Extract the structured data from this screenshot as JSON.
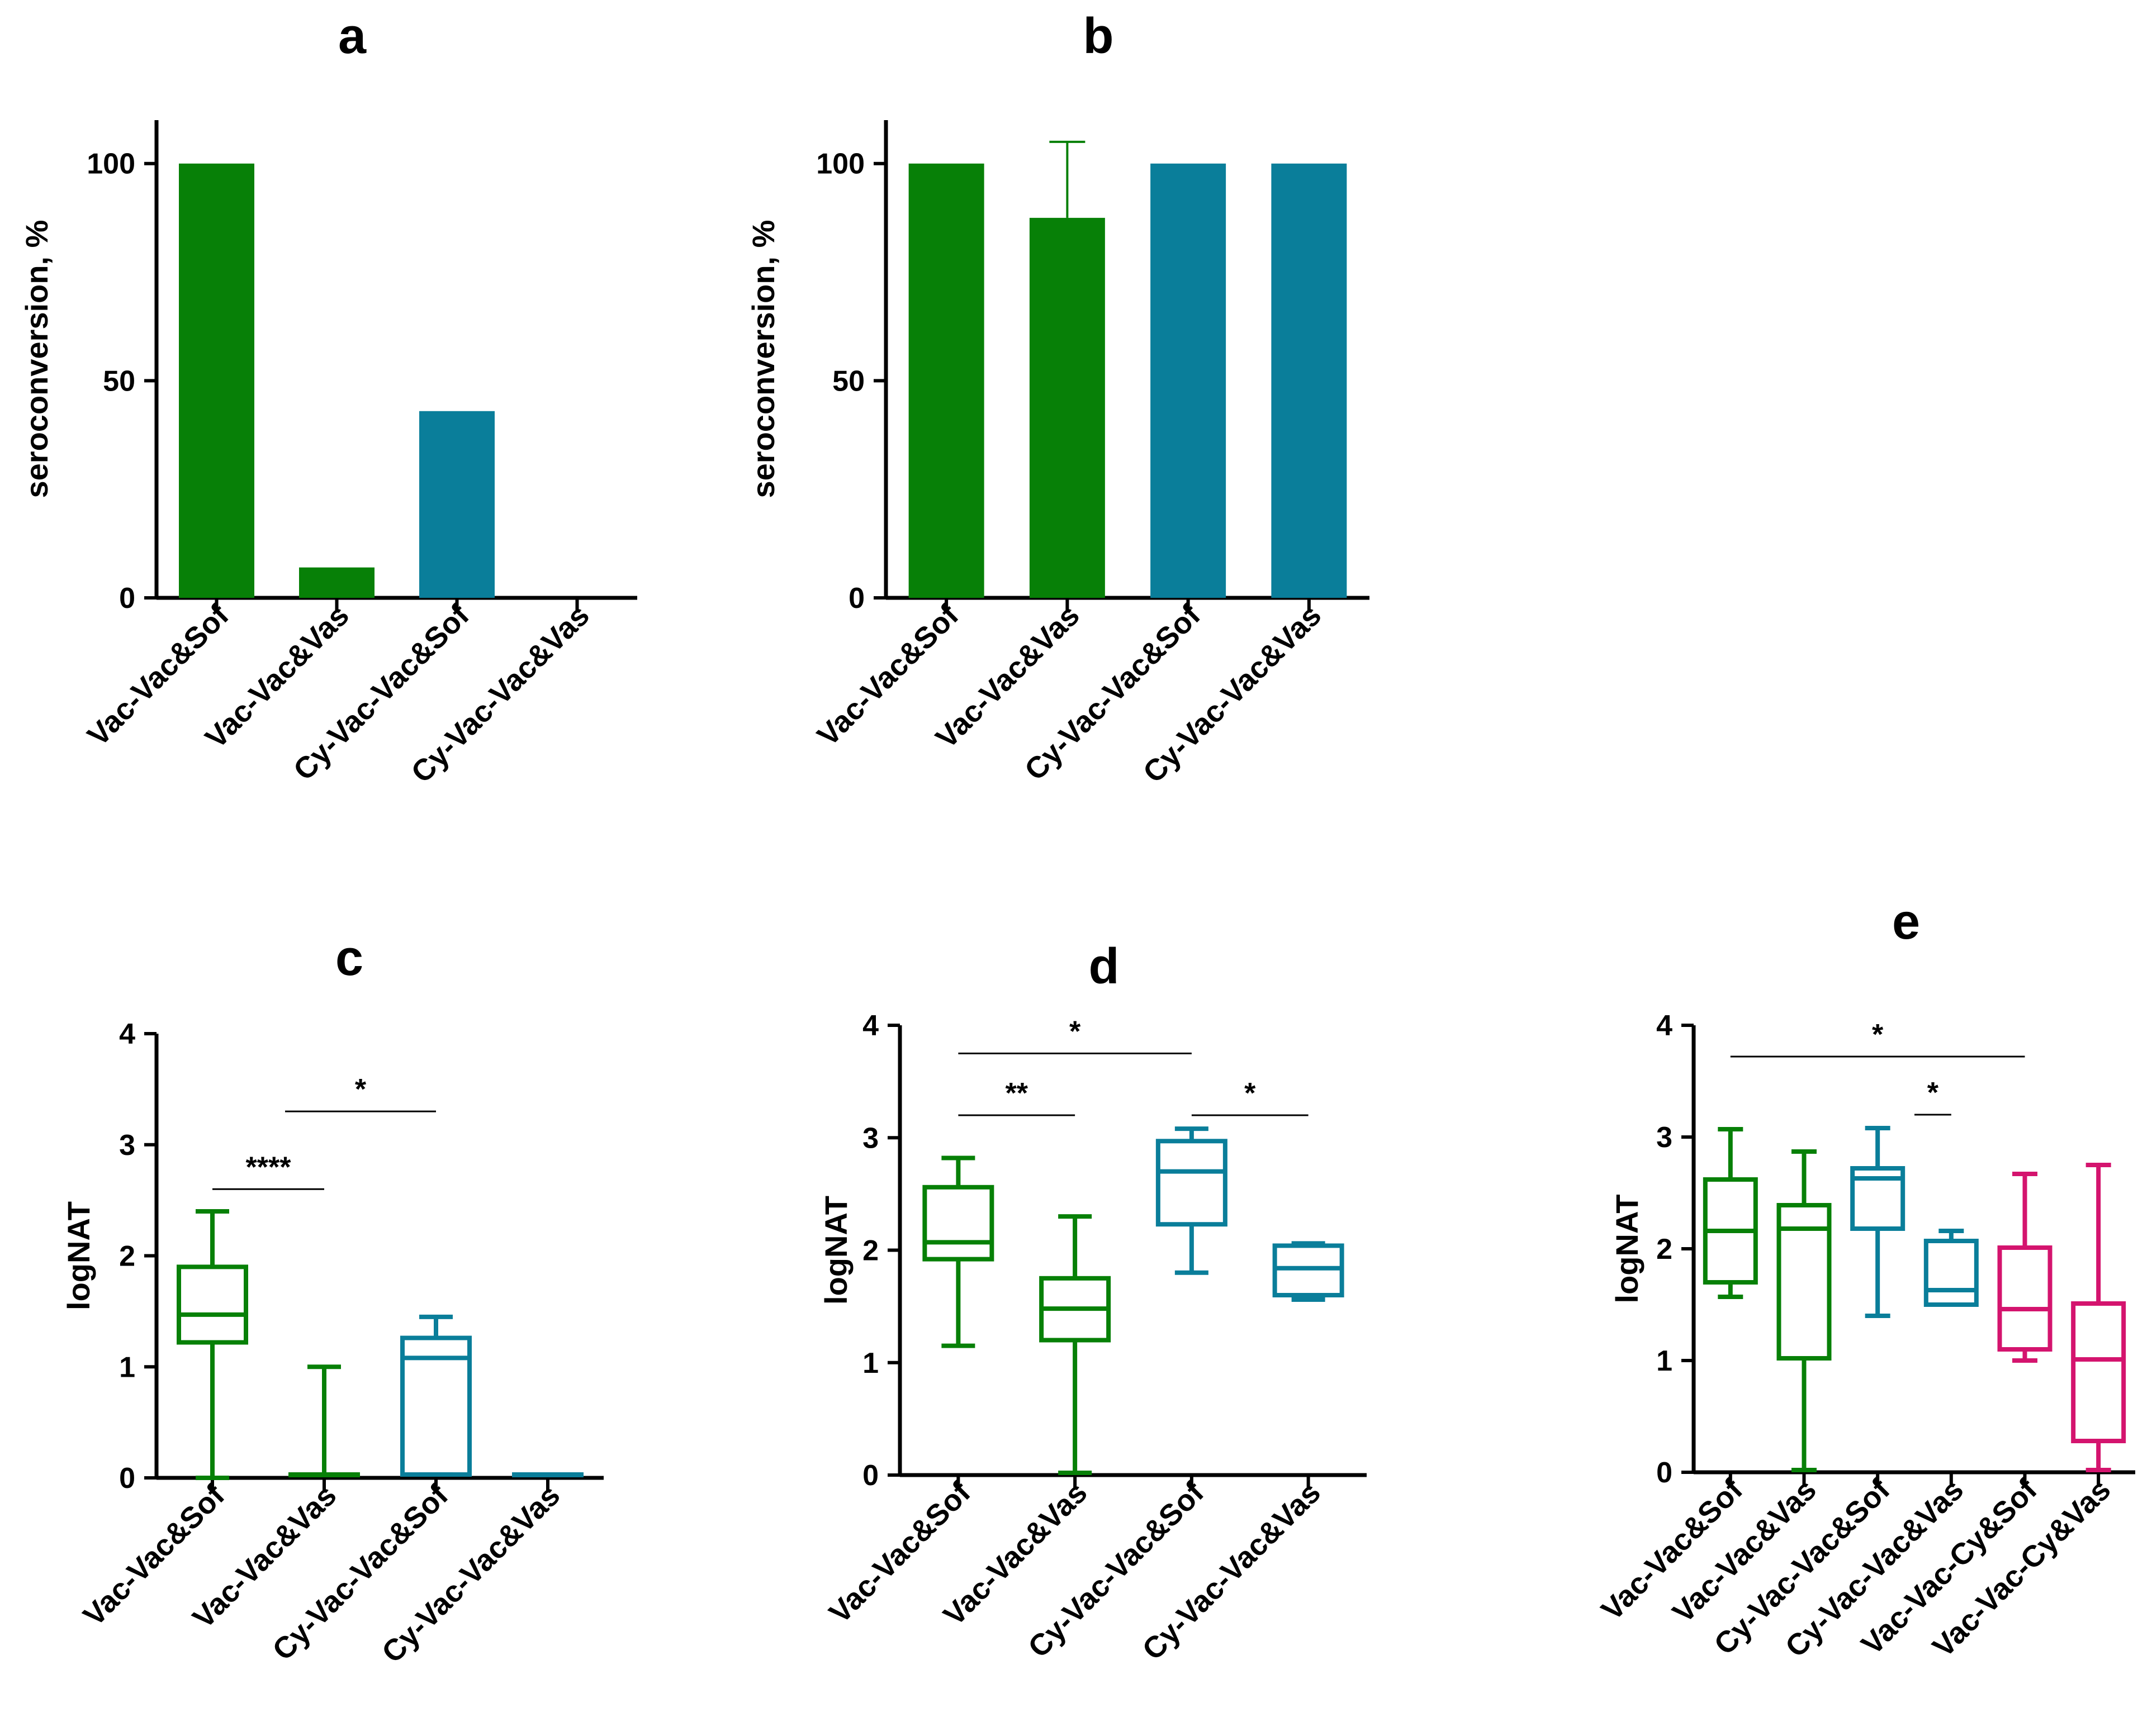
{
  "colors": {
    "green": "#078007",
    "teal": "#0A7E9A",
    "magenta": "#D4146E",
    "axis": "#000000"
  },
  "chart_data": [
    {
      "panel": "a",
      "type": "bar",
      "ylabel": "seroconversion, %",
      "ylim": [
        0,
        110
      ],
      "yticks": [
        0,
        50,
        100
      ],
      "categories": [
        "Vac-Vac&Sof",
        "Vac-Vac&Vas",
        "Cy-Vac-Vac&Sof",
        "Cy-Vac-Vac&Vas"
      ],
      "values": [
        100,
        7,
        43,
        0
      ],
      "series_colors": [
        "green",
        "green",
        "teal",
        "teal"
      ]
    },
    {
      "panel": "b",
      "type": "bar",
      "ylabel": "seroconversion, %",
      "ylim": [
        0,
        110
      ],
      "yticks": [
        0,
        50,
        100
      ],
      "categories": [
        "Vac-Vac&Sof",
        "Vac-Vac&Vas",
        "Cy-Vac-Vac&Sof",
        "Cy-Vac-Vac&Vas"
      ],
      "values": [
        100,
        87.5,
        100,
        100
      ],
      "error_upper": [
        null,
        105,
        null,
        null
      ],
      "series_colors": [
        "green",
        "green",
        "teal",
        "teal"
      ]
    },
    {
      "panel": "c",
      "type": "box",
      "ylabel": "logNAT",
      "ylim": [
        0,
        4
      ],
      "yticks": [
        0,
        1,
        2,
        3,
        4
      ],
      "categories": [
        "Vac-Vac&Sof",
        "Vac-Vac&Vas",
        "Cy-Vac-Vac&Sof",
        "Cy-Vac-Vac&Vas"
      ],
      "boxes": [
        {
          "min": 0,
          "q1": 1.22,
          "median": 1.47,
          "q3": 1.9,
          "max": 2.4
        },
        {
          "min": 0.03,
          "q1": 0.03,
          "median": 0.03,
          "q3": 0.03,
          "max": 1.0
        },
        {
          "min": 0.03,
          "q1": 0.03,
          "median": 1.08,
          "q3": 1.26,
          "max": 1.45
        },
        {
          "min": 0.03,
          "q1": 0.03,
          "median": 0.03,
          "q3": 0.03,
          "max": 0.03
        }
      ],
      "series_colors": [
        "green",
        "green",
        "teal",
        "teal"
      ],
      "significance": [
        {
          "from": 0,
          "to": 1,
          "y": 2.6,
          "label": "****"
        },
        {
          "from": 0.65,
          "to": 2,
          "y": 3.3,
          "label": "*"
        }
      ]
    },
    {
      "panel": "d",
      "type": "box",
      "ylabel": "logNAT",
      "ylim": [
        0,
        4
      ],
      "yticks": [
        0,
        1,
        2,
        3,
        4
      ],
      "categories": [
        "Vac-Vac&Sof",
        "Vac-Vac&Vas",
        "Cy-Vac-Vac&Sof",
        "Cy-Vac-Vac&Vas"
      ],
      "boxes": [
        {
          "min": 1.15,
          "q1": 1.92,
          "median": 2.07,
          "q3": 2.56,
          "max": 2.82
        },
        {
          "min": 0.02,
          "q1": 1.2,
          "median": 1.48,
          "q3": 1.75,
          "max": 2.3
        },
        {
          "min": 1.8,
          "q1": 2.23,
          "median": 2.7,
          "q3": 2.97,
          "max": 3.08
        },
        {
          "min": 1.56,
          "q1": 1.6,
          "median": 1.84,
          "q3": 2.04,
          "max": 2.06
        }
      ],
      "series_colors": [
        "green",
        "green",
        "teal",
        "teal"
      ],
      "significance": [
        {
          "from": 0,
          "to": 1,
          "y": 3.2,
          "label": "**"
        },
        {
          "from": 0,
          "to": 2,
          "y": 3.75,
          "label": "*"
        },
        {
          "from": 2,
          "to": 3,
          "y": 3.2,
          "label": "*"
        }
      ]
    },
    {
      "panel": "e",
      "type": "box",
      "ylabel": "logNAT",
      "ylim": [
        0,
        4
      ],
      "yticks": [
        0,
        1,
        2,
        3,
        4
      ],
      "categories": [
        "Vac-Vac&Sof",
        "Vac-Vac&Vas",
        "Cy-Vac-Vac&Sof",
        "Cy-Vac-Vac&Vas",
        "Vac-Vac-Cy&Sof",
        "Vac-Vac-Cy&Vas"
      ],
      "boxes": [
        {
          "min": 1.57,
          "q1": 1.7,
          "median": 2.16,
          "q3": 2.62,
          "max": 3.07
        },
        {
          "min": 0.02,
          "q1": 1.02,
          "median": 2.18,
          "q3": 2.39,
          "max": 2.87
        },
        {
          "min": 1.4,
          "q1": 2.18,
          "median": 2.63,
          "q3": 2.72,
          "max": 3.08
        },
        {
          "min": 1.5,
          "q1": 1.5,
          "median": 1.63,
          "q3": 2.07,
          "max": 2.16
        },
        {
          "min": 1.0,
          "q1": 1.1,
          "median": 1.46,
          "q3": 2.01,
          "max": 2.67
        },
        {
          "min": 0.02,
          "q1": 0.28,
          "median": 1.01,
          "q3": 1.51,
          "max": 2.75
        }
      ],
      "series_colors": [
        "green",
        "green",
        "teal",
        "teal",
        "magenta",
        "magenta"
      ],
      "significance": [
        {
          "from": 0,
          "to": 4,
          "y": 3.72,
          "label": "*"
        },
        {
          "from": 2.5,
          "to": 3,
          "y": 3.2,
          "label": "*"
        }
      ]
    }
  ]
}
